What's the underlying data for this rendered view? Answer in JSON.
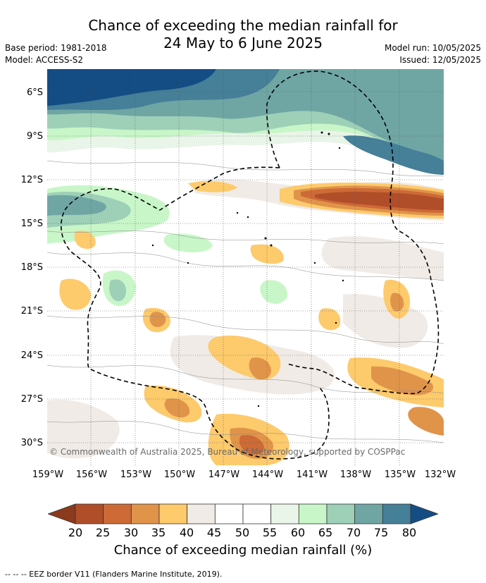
{
  "title_line1": "Chance of exceeding the median rainfall for",
  "title_line2": "24 May to 6 June 2025",
  "base_period": "Base period: 1981-2018",
  "model": "Model: ACCESS-S2",
  "model_run": "Model run: 10/05/2025",
  "issued": "Issued: 12/05/2025",
  "lat_labels": [
    "6°S",
    "9°S",
    "12°S",
    "15°S",
    "18°S",
    "21°S",
    "24°S",
    "27°S",
    "30°S"
  ],
  "lon_labels": [
    "159°W",
    "156°W",
    "153°W",
    "150°W",
    "147°W",
    "144°W",
    "141°W",
    "138°W",
    "135°W",
    "132°W"
  ],
  "copyright": "© Commonwealth of Australia 2025, Bureau of Meteorology, supported by COSPPac",
  "colorbar_ticks": [
    "20",
    "25",
    "30",
    "35",
    "40",
    "45",
    "50",
    "55",
    "60",
    "65",
    "70",
    "75",
    "80"
  ],
  "colorbar_colors": [
    "#8c3a1e",
    "#b04e2a",
    "#cd6a36",
    "#e0944a",
    "#fdca6c",
    "#f0ebe6",
    "#ffffff",
    "#ffffff",
    "#e8f5e8",
    "#c8f6c8",
    "#9ed0b8",
    "#6fa6a4",
    "#457f98",
    "#134d84"
  ],
  "colorbar_label": "Chance of exceeding median rainfall (%)",
  "footer": "--  --  -- EEZ border V11 (Flanders Marine Institute, 2019)."
}
